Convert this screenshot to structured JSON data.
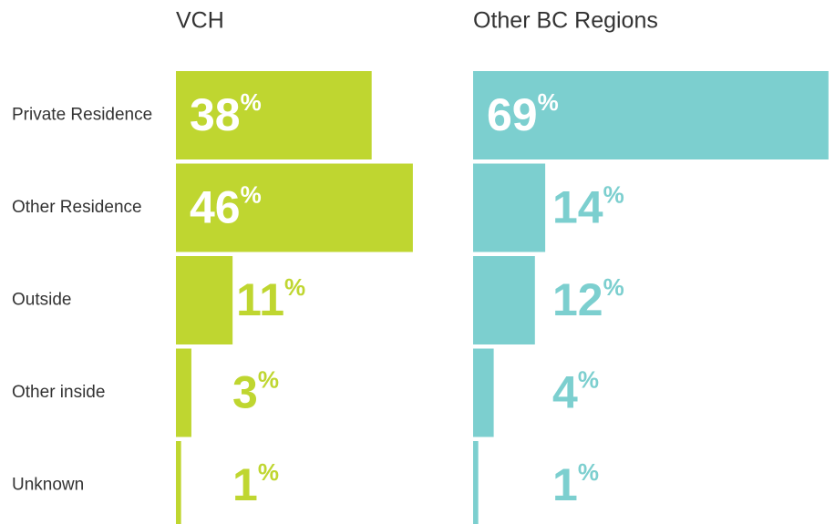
{
  "chart_data": {
    "type": "bar",
    "categories": [
      "Private Residence",
      "Other Residence",
      "Outside",
      "Other inside",
      "Unknown"
    ],
    "series": [
      {
        "name": "VCH",
        "color": "#bfd630",
        "values": [
          38,
          46,
          11,
          3,
          1
        ],
        "value_labels": [
          "38%",
          "46%",
          "11%",
          "3%",
          "1%"
        ]
      },
      {
        "name": "Other BC Regions",
        "color": "#7ccfcf",
        "values": [
          69,
          14,
          12,
          4,
          1
        ],
        "value_labels": [
          "69%",
          "14%",
          "12%",
          "4%",
          "1%"
        ]
      }
    ]
  }
}
